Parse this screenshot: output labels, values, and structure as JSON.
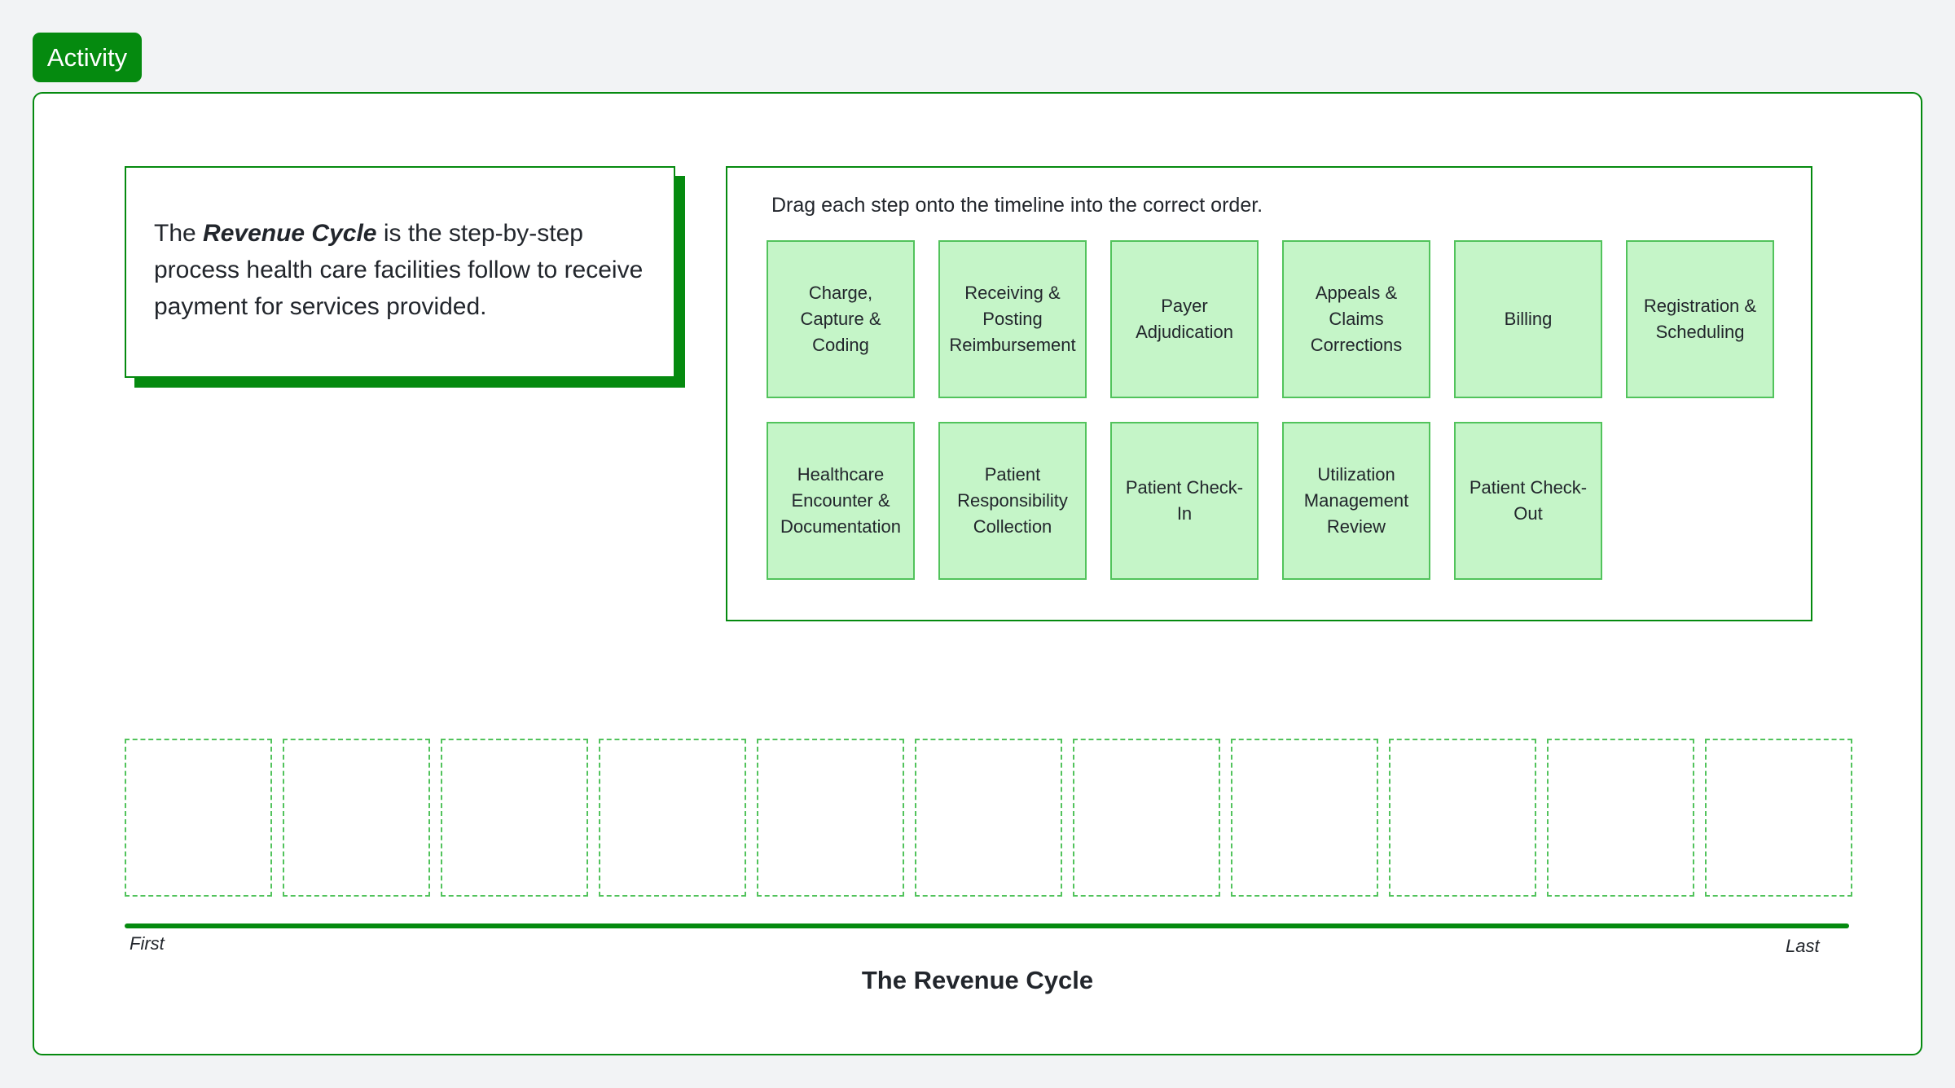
{
  "badge": {
    "label": "Activity"
  },
  "intro": {
    "prefix": "The ",
    "term": "Revenue Cycle",
    "suffix": " is the step-by-step process health care facilities follow to receive payment for services provided."
  },
  "steps": {
    "instruction": "Drag each step onto the timeline into the correct order.",
    "cards": [
      "Charge, Capture & Coding",
      "Receiving & Posting Reimbursement",
      "Payer Adjudication",
      "Appeals & Claims Corrections",
      "Billing",
      "Registration & Scheduling",
      "Healthcare Encounter & Documentation",
      "Patient Responsibility Collection",
      "Patient Check-In",
      "Utilization Management Review",
      "Patient Check-Out"
    ]
  },
  "timeline": {
    "slot_count": 11,
    "first_label": "First",
    "last_label": "Last",
    "title": "The Revenue Cycle"
  },
  "colors": {
    "accent": "#058a0f",
    "card_fill": "#c5f5c8",
    "card_border": "#52c35c",
    "background": "#f2f3f5"
  }
}
